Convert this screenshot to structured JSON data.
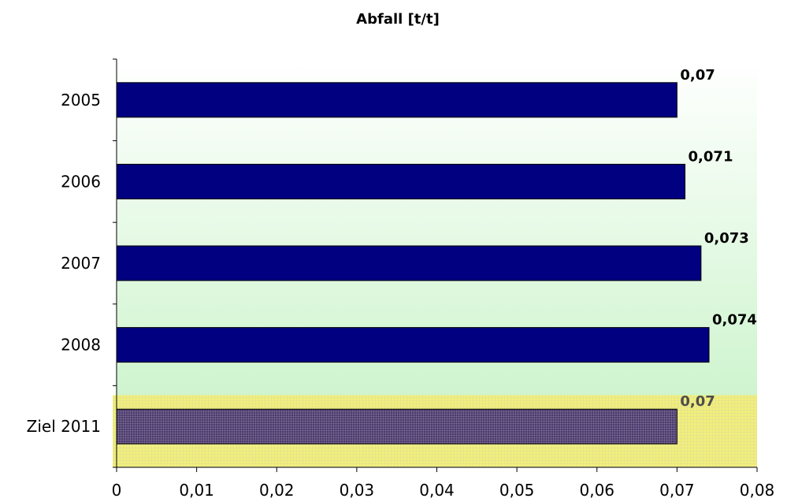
{
  "chart_data": {
    "type": "bar",
    "orientation": "horizontal",
    "title": "Abfall [t/t]",
    "categories": [
      "2005",
      "2006",
      "2007",
      "2008",
      "Ziel 2011"
    ],
    "values": [
      0.07,
      0.071,
      0.073,
      0.074,
      0.07
    ],
    "data_labels": [
      "0,07",
      "0,071",
      "0,073",
      "0,074",
      "0,07"
    ],
    "xlim": [
      0,
      0.08
    ],
    "x_ticks": [
      0,
      0.01,
      0.02,
      0.03,
      0.04,
      0.05,
      0.06,
      0.07,
      0.08
    ],
    "x_tick_labels": [
      "0",
      "0,01",
      "0,02",
      "0,03",
      "0,04",
      "0,05",
      "0,06",
      "0,07",
      "0,08"
    ],
    "xlabel": "",
    "ylabel": "",
    "grid": false,
    "legend": "none",
    "highlight_category": "Ziel 2011",
    "colors": {
      "bar": "#000080",
      "bar_highlight": "#4a3a6e",
      "highlight_band": "#f0f07a",
      "plot_bg_top": "#ffffff",
      "plot_bg_bottom": "#c4f2c4",
      "axis": "#000000"
    }
  }
}
